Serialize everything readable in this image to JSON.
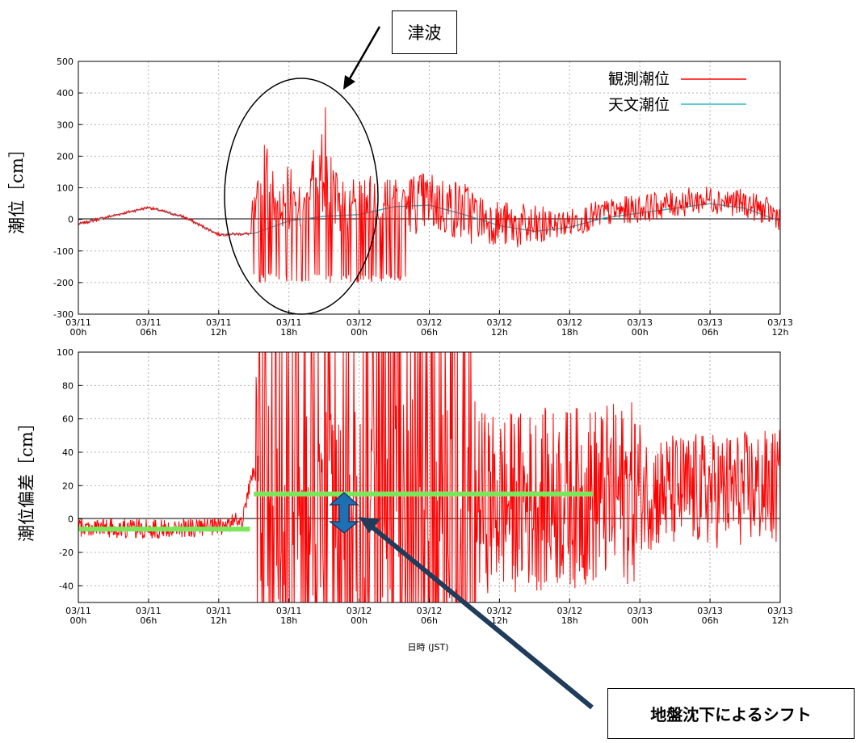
{
  "chart_data": [
    {
      "type": "line",
      "ylabel": "潮位［cm］",
      "ylim": [
        -300,
        500
      ],
      "yticks": [
        -300,
        -200,
        -100,
        0,
        100,
        200,
        300,
        400,
        500
      ],
      "x_tick_labels": [
        {
          "date": "03/11",
          "hour": "00h"
        },
        {
          "date": "03/11",
          "hour": "06h"
        },
        {
          "date": "03/11",
          "hour": "12h"
        },
        {
          "date": "03/11",
          "hour": "18h"
        },
        {
          "date": "03/12",
          "hour": "00h"
        },
        {
          "date": "03/12",
          "hour": "06h"
        },
        {
          "date": "03/12",
          "hour": "12h"
        },
        {
          "date": "03/12",
          "hour": "18h"
        },
        {
          "date": "03/13",
          "hour": "00h"
        },
        {
          "date": "03/13",
          "hour": "06h"
        },
        {
          "date": "03/13",
          "hour": "12h"
        }
      ],
      "grid": true,
      "legend_position": "top-right",
      "series": [
        {
          "name": "観測潮位",
          "color": "#ff0000",
          "x": [
            "03/11 00h",
            "03/11 03h",
            "03/11 06h",
            "03/11 09h",
            "03/11 12h",
            "03/11 14h",
            "03/11 15h",
            "03/11 16h",
            "03/11 18h",
            "03/11 21h",
            "03/12 00h",
            "03/12 03h",
            "03/12 06h",
            "03/12 09h",
            "03/12 12h",
            "03/12 15h",
            "03/12 18h",
            "03/12 21h",
            "03/13 00h",
            "03/13 03h",
            "03/13 06h",
            "03/13 09h",
            "03/13 12h"
          ],
          "y": [
            -20,
            10,
            38,
            10,
            -55,
            -50,
            15,
            350,
            -200,
            400,
            -200,
            150,
            50,
            120,
            -50,
            100,
            -40,
            80,
            20,
            60,
            70,
            80,
            10
          ]
        },
        {
          "name": "天文潮位",
          "color": "#2cb8c8",
          "x": [
            "03/11 00h",
            "03/11 03h",
            "03/11 06h",
            "03/11 09h",
            "03/11 12h",
            "03/11 15h",
            "03/11 18h",
            "03/11 21h",
            "03/12 00h",
            "03/12 03h",
            "03/12 06h",
            "03/12 09h",
            "03/12 12h",
            "03/12 15h",
            "03/12 18h",
            "03/12 21h",
            "03/13 00h",
            "03/13 03h",
            "03/13 06h",
            "03/13 09h",
            "03/13 12h"
          ],
          "y": [
            -15,
            12,
            38,
            8,
            -48,
            -45,
            -5,
            10,
            15,
            40,
            45,
            15,
            -20,
            -38,
            -25,
            5,
            20,
            35,
            50,
            35,
            -5
          ]
        }
      ],
      "annotations": [
        "津波"
      ]
    },
    {
      "type": "line",
      "ylabel": "潮位偏差［cm］",
      "xlabel": "日時 (JST)",
      "ylim": [
        -50,
        100
      ],
      "yticks": [
        -40,
        -20,
        0,
        20,
        40,
        60,
        80,
        100
      ],
      "x_tick_labels": [
        {
          "date": "03/11",
          "hour": "00h"
        },
        {
          "date": "03/11",
          "hour": "06h"
        },
        {
          "date": "03/11",
          "hour": "12h"
        },
        {
          "date": "03/11",
          "hour": "18h"
        },
        {
          "date": "03/12",
          "hour": "00h"
        },
        {
          "date": "03/12",
          "hour": "06h"
        },
        {
          "date": "03/12",
          "hour": "12h"
        },
        {
          "date": "03/12",
          "hour": "18h"
        },
        {
          "date": "03/13",
          "hour": "00h"
        },
        {
          "date": "03/13",
          "hour": "06h"
        },
        {
          "date": "03/13",
          "hour": "12h"
        }
      ],
      "grid": true,
      "series": [
        {
          "color": "#ff0000",
          "x": [
            "03/11 00h",
            "03/11 06h",
            "03/11 12h",
            "03/11 14h",
            "03/11 15h",
            "03/11 16h",
            "03/11 18h",
            "03/11 21h",
            "03/12 00h",
            "03/12 06h",
            "03/12 12h",
            "03/12 18h",
            "03/13 00h",
            "03/13 06h",
            "03/13 12h"
          ],
          "y": [
            -5,
            -6,
            -5,
            0,
            30,
            15,
            9,
            8,
            12,
            13,
            10,
            13,
            16,
            17,
            19
          ]
        }
      ],
      "reference_levels": [
        {
          "from": "03/11 00h",
          "to": "03/11 14h40",
          "y": -6,
          "color": "#7ae65a"
        },
        {
          "from": "03/11 15h",
          "to": "03/12 20h",
          "y": 15,
          "color": "#7ae65a"
        }
      ],
      "annotations": [
        "地盤沈下によるシフト"
      ]
    }
  ],
  "callouts": {
    "tsunami": "津波",
    "shift": "地盤沈下によるシフト"
  }
}
